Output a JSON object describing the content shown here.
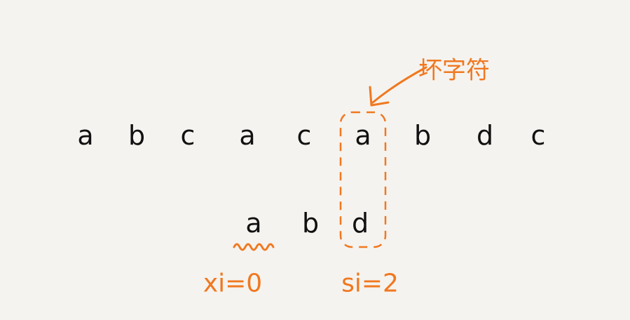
{
  "main_string": [
    "a",
    "b",
    "c",
    "a",
    "c",
    "a",
    "b",
    "d",
    "c"
  ],
  "pattern": [
    "a",
    "b",
    "d"
  ],
  "callout": {
    "label": "坏字符"
  },
  "variables": {
    "xi": "xi=0",
    "si": "si=2"
  },
  "colors": {
    "background": "#f5f3ef",
    "text": "#111111",
    "accent": "#f07820"
  }
}
